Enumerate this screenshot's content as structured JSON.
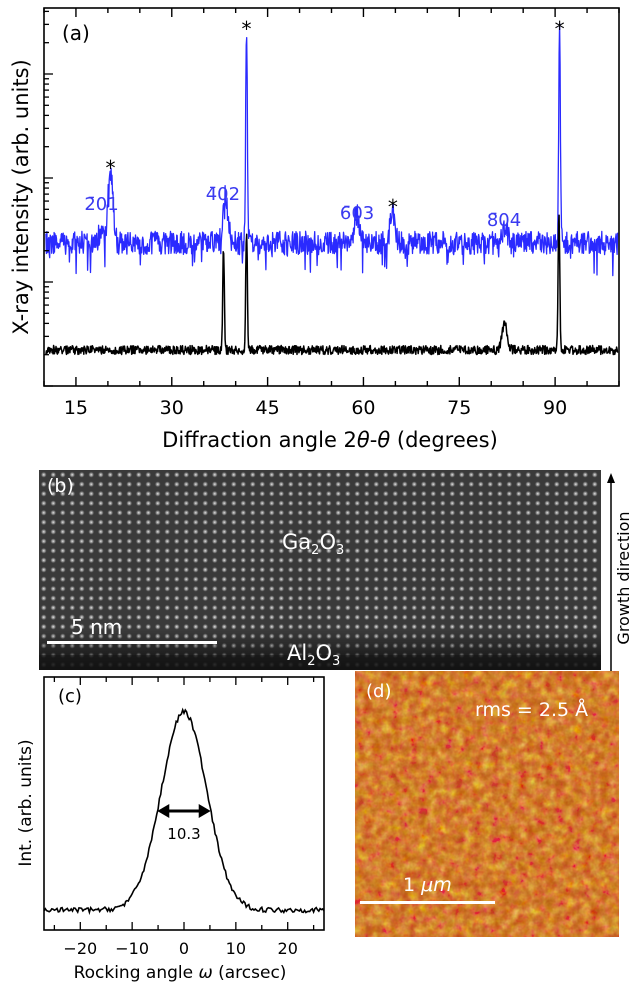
{
  "figure": {
    "colors": {
      "blue": "#2a2aff",
      "black": "#000000",
      "blue_label": "#3a3af0"
    },
    "panel_a": {
      "label": "(a)",
      "ylabel": "X-ray intensity (arb. units)",
      "xlabel_pre": "Diffraction angle 2",
      "xlabel_theta1": "θ",
      "xlabel_mid": "-",
      "xlabel_theta2": "θ",
      "xlabel_post": " (degrees)",
      "peak_labels": [
        {
          "text": "2̄01",
          "x": 19
        },
        {
          "text": "4̄02",
          "x": 38
        },
        {
          "text": "6̄03",
          "x": 59
        },
        {
          "text": "8̄04",
          "x": 82
        }
      ],
      "star_label": "*"
    },
    "panel_b": {
      "label": "(b)",
      "film_label": "Ga",
      "film_sub": "2",
      "film_label2": "O",
      "film_sub2": "3",
      "substrate_label": "Al",
      "substrate_sub": "2",
      "substrate_label2": "O",
      "substrate_sub2": "3",
      "scalebar": "5 nm",
      "growth_direction": "Growth direction"
    },
    "panel_c": {
      "label": "(c)",
      "ylabel": "Int. (arb. units)",
      "xlabel_pre": "Rocking angle ",
      "xlabel_omega": "ω",
      "xlabel_post": " (arcsec)",
      "fwhm_value": "10.3"
    },
    "panel_d": {
      "label": "(d)",
      "rms_text": "rms = 2.5 Å",
      "scalebar_value": "1 ",
      "scalebar_unit": "μm"
    }
  },
  "chart_data": [
    {
      "type": "line",
      "panel": "(a)",
      "xlabel": "Diffraction angle 2θ-θ (degrees)",
      "ylabel": "X-ray intensity (arb. units)",
      "xlim": [
        10,
        100
      ],
      "xticks": [
        15,
        30,
        45,
        60,
        75,
        90
      ],
      "yscale": "log",
      "series": [
        {
          "color": "#2a2aff",
          "baseline": 1.0,
          "peaks": [
            {
              "x": 18.9,
              "height": 0.35,
              "star": false
            },
            {
              "x": 20.4,
              "height": 2.7,
              "star": true
            },
            {
              "x": 38.4,
              "height": 1.8,
              "star": false
            },
            {
              "x": 41.7,
              "height": 8.5,
              "star": true
            },
            {
              "x": 58.9,
              "height": 1.1,
              "star": false
            },
            {
              "x": 64.6,
              "height": 1.2,
              "star": true
            },
            {
              "x": 82.2,
              "height": 0.6,
              "star": false
            },
            {
              "x": 90.7,
              "height": 8.5,
              "star": true
            }
          ]
        },
        {
          "color": "#000000",
          "baseline": 1.0,
          "peaks": [
            {
              "x": 38.1,
              "height": 3.4
            },
            {
              "x": 41.7,
              "height": 4.0
            },
            {
              "x": 82.1,
              "height": 0.9
            },
            {
              "x": 90.6,
              "height": 4.6
            }
          ]
        }
      ]
    },
    {
      "type": "line",
      "panel": "(c)",
      "xlabel": "Rocking angle ω (arcsec)",
      "ylabel": "Int. (arb. units)",
      "xlim": [
        -27,
        27
      ],
      "xticks": [
        -20,
        -10,
        0,
        10,
        20
      ],
      "series": [
        {
          "type": "gaussian",
          "center": 0,
          "fwhm": 10.3,
          "peak": 1.0,
          "baseline": 0.06
        }
      ],
      "annotation": {
        "text": "10.3",
        "x1": -5.15,
        "x2": 5.15
      }
    }
  ]
}
